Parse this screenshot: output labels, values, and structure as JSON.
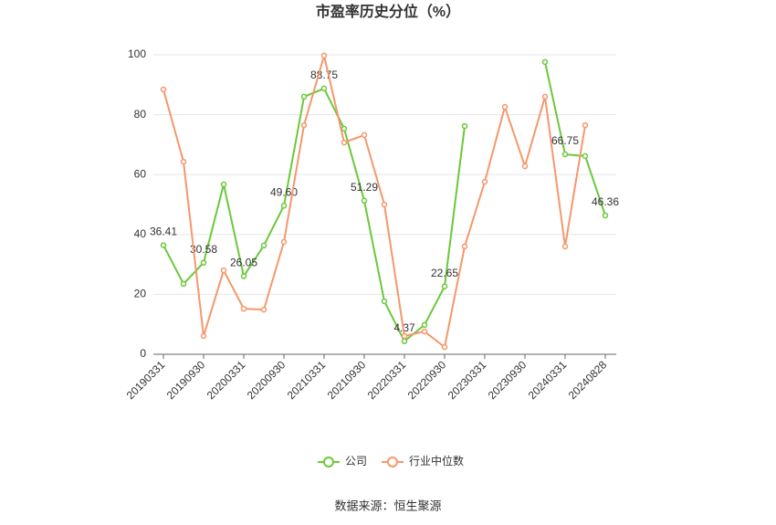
{
  "chart_data": {
    "type": "line",
    "title": "市盈率历史分位（%）",
    "categories": [
      "20190331",
      null,
      "20190930",
      null,
      "20200331",
      null,
      "20200930",
      null,
      "20210331",
      null,
      "20210930",
      null,
      "20220331",
      null,
      "20220930",
      null,
      "20230331",
      null,
      "20230930",
      null,
      "20240331",
      null,
      "20240828"
    ],
    "series": [
      {
        "name": "公司",
        "color": "#6bc83a",
        "values": [
          36.41,
          23.5,
          30.58,
          56.7,
          26.05,
          36.3,
          49.6,
          86,
          88.75,
          75.3,
          51.29,
          17.7,
          4.37,
          9.8,
          22.65,
          76.2,
          null,
          null,
          null,
          97.6,
          66.75,
          66.2,
          46.36
        ],
        "value_labels": [
          "36.41",
          null,
          "30.58",
          null,
          "26.05",
          null,
          "49.60",
          null,
          "88.75",
          null,
          "51.29",
          null,
          "4.37",
          null,
          "22.65",
          null,
          null,
          null,
          null,
          null,
          "66.75",
          null,
          "46.36"
        ]
      },
      {
        "name": "行业中位数",
        "color": "#f5976c",
        "values": [
          88.4,
          64.3,
          6.1,
          28,
          15.2,
          14.9,
          37.5,
          76.5,
          99.7,
          70.7,
          73.2,
          50,
          6.1,
          7.6,
          2.4,
          36,
          57.6,
          82.6,
          62.8,
          86,
          36,
          76.5,
          null
        ]
      }
    ],
    "ylim": [
      0,
      100
    ],
    "yticks": [
      0,
      20,
      40,
      60,
      80,
      100
    ],
    "grid": true,
    "source": "数据来源：恒生聚源"
  }
}
